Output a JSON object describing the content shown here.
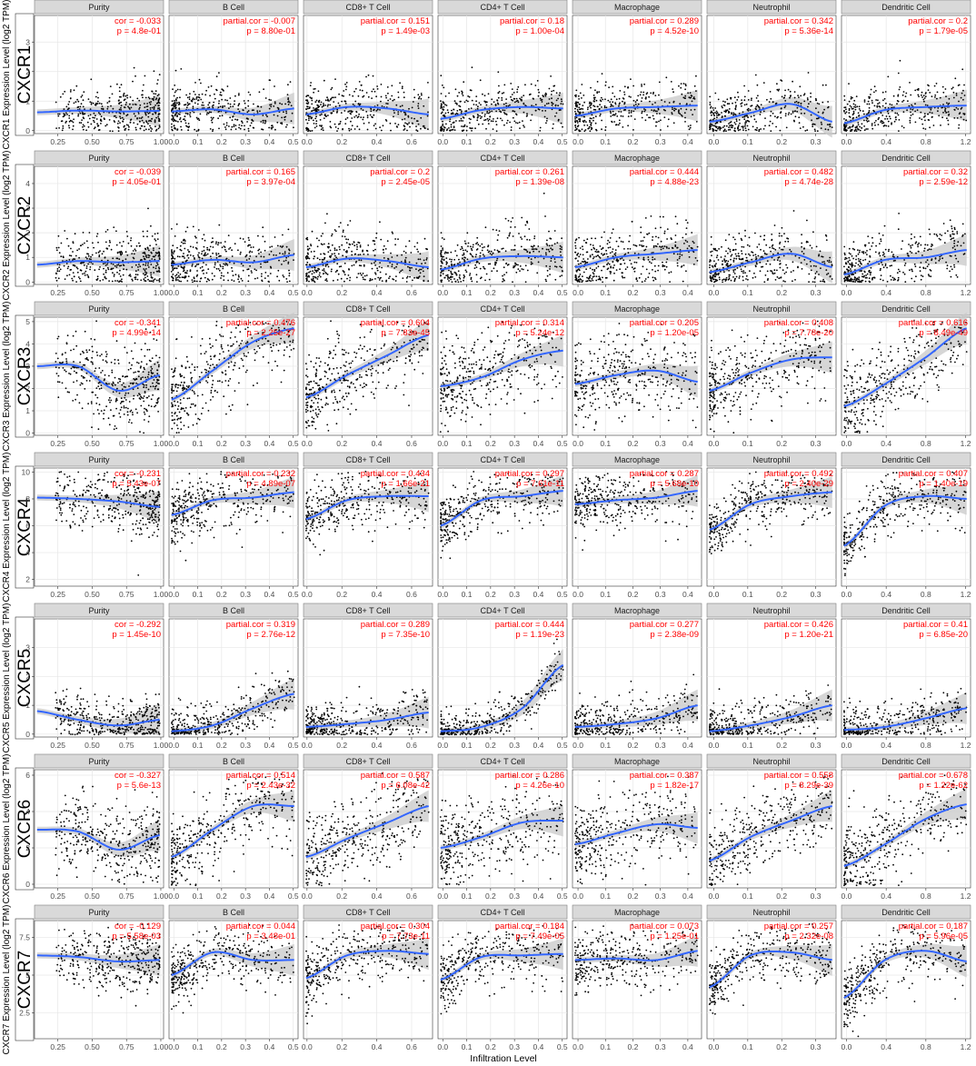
{
  "x_axis_label": "Infiltration Level",
  "colors": {
    "panel_bg": "#ffffff",
    "grid": "#e6e6e6",
    "strip_bg": "#d9d9d9",
    "strip_border": "#7f7f7f",
    "point": "#000000",
    "smooth_line": "#3366ff",
    "ci_band": "#c8c8c8",
    "stat_text": "#ff0000"
  },
  "chart_data": {
    "type": "scatter",
    "smoother": "loess with 95% confidence band",
    "columns": [
      {
        "name": "Purity",
        "stat_label": "cor",
        "xlim": [
          0.08,
          1.02
        ],
        "xticks": [
          0.25,
          0.5,
          0.75,
          1.0
        ],
        "xtick_labels": [
          "0.25",
          "0.50",
          "0.75",
          "1.00"
        ]
      },
      {
        "name": "B Cell",
        "stat_label": "partial.cor",
        "xlim": [
          -0.02,
          0.52
        ],
        "xticks": [
          0,
          0.1,
          0.2,
          0.3,
          0.4,
          0.5
        ],
        "xtick_labels": [
          "0.0",
          "0.1",
          "0.2",
          "0.3",
          "0.4",
          "0.5"
        ]
      },
      {
        "name": "CD8+ T Cell",
        "stat_label": "partial.cor",
        "xlim": [
          -0.02,
          0.72
        ],
        "xticks": [
          0,
          0.2,
          0.4,
          0.6
        ],
        "xtick_labels": [
          "0.0",
          "0.2",
          "0.4",
          "0.6"
        ]
      },
      {
        "name": "CD4+ T Cell",
        "stat_label": "partial.cor",
        "xlim": [
          -0.02,
          0.52
        ],
        "xticks": [
          0,
          0.1,
          0.2,
          0.3,
          0.4,
          0.5
        ],
        "xtick_labels": [
          "0.0",
          "0.1",
          "0.2",
          "0.3",
          "0.4",
          "0.5"
        ]
      },
      {
        "name": "Macrophage",
        "stat_label": "partial.cor",
        "xlim": [
          -0.02,
          0.45
        ],
        "xticks": [
          0,
          0.1,
          0.2,
          0.3,
          0.4
        ],
        "xtick_labels": [
          "0.0",
          "0.1",
          "0.2",
          "0.3",
          "0.4"
        ]
      },
      {
        "name": "Neutrophil",
        "stat_label": "partial.cor",
        "xlim": [
          -0.02,
          0.36
        ],
        "xticks": [
          0,
          0.1,
          0.2,
          0.3
        ],
        "xtick_labels": [
          "0.0",
          "0.1",
          "0.2",
          "0.3"
        ]
      },
      {
        "name": "Dendritic Cell",
        "stat_label": "partial.cor",
        "xlim": [
          -0.05,
          1.25
        ],
        "xticks": [
          0,
          0.4,
          0.8,
          1.2
        ],
        "xtick_labels": [
          "0.0",
          "0.4",
          "0.8",
          "1.2"
        ]
      }
    ],
    "rows": [
      {
        "gene": "CXCR1",
        "ylabel": "CXCR1 Expression Level (log2 TPM)",
        "ylim": [
          -0.1,
          3.9
        ],
        "yticks": [
          0,
          1,
          2,
          3
        ],
        "mean": 0.65,
        "sd": 0.45,
        "panels": [
          {
            "cor": "-0.033",
            "p": "4.8e-01",
            "curve": [
              0.62,
              0.68,
              0.65,
              0.67
            ]
          },
          {
            "cor": "-0.007",
            "p": "8.80e-01",
            "curve": [
              0.65,
              0.72,
              0.55,
              0.75
            ]
          },
          {
            "cor": "0.151",
            "p": "1.49e-03",
            "curve": [
              0.55,
              0.8,
              0.75,
              0.55
            ]
          },
          {
            "cor": "0.18",
            "p": "1.00e-04",
            "curve": [
              0.4,
              0.7,
              0.8,
              0.75
            ]
          },
          {
            "cor": "0.289",
            "p": "4.52e-10",
            "curve": [
              0.5,
              0.75,
              0.8,
              0.85
            ]
          },
          {
            "cor": "0.342",
            "p": "5.36e-14",
            "curve": [
              0.3,
              0.6,
              0.9,
              0.3
            ]
          },
          {
            "cor": "0.2",
            "p": "1.79e-05",
            "curve": [
              0.25,
              0.7,
              0.8,
              0.85
            ]
          }
        ]
      },
      {
        "gene": "CXCR2",
        "ylabel": "CXCR2 Expression Level (log2 TPM)",
        "ylim": [
          -0.1,
          4.7
        ],
        "yticks": [
          0,
          1,
          2,
          3,
          4
        ],
        "mean": 0.85,
        "sd": 0.6,
        "panels": [
          {
            "cor": "-0.039",
            "p": "4.05e-01",
            "curve": [
              0.7,
              0.85,
              0.8,
              0.85
            ]
          },
          {
            "cor": "0.165",
            "p": "3.97e-04",
            "curve": [
              0.7,
              0.9,
              0.8,
              1.1
            ]
          },
          {
            "cor": "0.2",
            "p": "2.45e-05",
            "curve": [
              0.6,
              0.95,
              0.85,
              0.6
            ]
          },
          {
            "cor": "0.261",
            "p": "1.39e-08",
            "curve": [
              0.5,
              0.95,
              1.05,
              1.0
            ]
          },
          {
            "cor": "0.444",
            "p": "4.88e-23",
            "curve": [
              0.6,
              1.0,
              1.15,
              1.3
            ]
          },
          {
            "cor": "0.482",
            "p": "4.74e-28",
            "curve": [
              0.4,
              0.8,
              1.15,
              0.6
            ]
          },
          {
            "cor": "0.32",
            "p": "2.59e-12",
            "curve": [
              0.3,
              0.9,
              1.0,
              1.3
            ]
          }
        ]
      },
      {
        "gene": "CXCR3",
        "ylabel": "CXCR3 Expression Level (log2 TPM)",
        "ylim": [
          -0.1,
          5.2
        ],
        "yticks": [
          0,
          1,
          2,
          3,
          4,
          5
        ],
        "mean": 2.6,
        "sd": 0.9,
        "panels": [
          {
            "cor": "-0.341",
            "p": "4.99e-14",
            "curve": [
              3.0,
              3.0,
              1.9,
              2.6
            ]
          },
          {
            "cor": "0.476",
            "p": "2.25e-27",
            "curve": [
              1.5,
              2.8,
              4.1,
              4.7
            ]
          },
          {
            "cor": "0.604",
            "p": "7.83e-45",
            "curve": [
              1.6,
              2.6,
              3.5,
              4.4
            ]
          },
          {
            "cor": "0.314",
            "p": "5.24e-12",
            "curve": [
              2.1,
              2.5,
              3.3,
              3.7
            ]
          },
          {
            "cor": "0.205",
            "p": "1.20e-05",
            "curve": [
              2.2,
              2.6,
              2.8,
              2.3
            ]
          },
          {
            "cor": "0.408",
            "p": "7.78e-20",
            "curve": [
              1.9,
              2.7,
              3.3,
              3.4
            ]
          },
          {
            "cor": "0.616",
            "p": "8.49e-49",
            "curve": [
              1.2,
              2.2,
              3.4,
              4.7
            ]
          }
        ]
      },
      {
        "gene": "CXCR4",
        "ylabel": "CXCR4 Expression Level (log2 TPM)",
        "ylim": [
          1.5,
          10.3
        ],
        "yticks": [
          2,
          4,
          6,
          8,
          10
        ],
        "mean": 7.6,
        "sd": 1.1,
        "panels": [
          {
            "cor": "-0.231",
            "p": "5.43e-07",
            "curve": [
              8.1,
              8.0,
              7.8,
              7.4
            ]
          },
          {
            "cor": "0.232",
            "p": "4.89e-07",
            "curve": [
              6.8,
              7.9,
              8.1,
              8.5
            ]
          },
          {
            "cor": "0.434",
            "p": "1.66e-21",
            "curve": [
              6.5,
              7.9,
              8.2,
              8.2
            ]
          },
          {
            "cor": "0.297",
            "p": "7.61e-11",
            "curve": [
              6.0,
              7.9,
              8.2,
              8.6
            ]
          },
          {
            "cor": "0.287",
            "p": "5.68e-10",
            "curve": [
              7.6,
              7.9,
              8.1,
              8.6
            ]
          },
          {
            "cor": "0.492",
            "p": "2.40e-29",
            "curve": [
              5.7,
              7.6,
              8.2,
              8.5
            ]
          },
          {
            "cor": "0.407",
            "p": "1.40e-19",
            "curve": [
              4.5,
              7.5,
              8.2,
              8.0
            ]
          }
        ]
      },
      {
        "gene": "CXCR5",
        "ylabel": "CXCR5 Expression Level (log2 TPM)",
        "ylim": [
          -0.1,
          4.0
        ],
        "yticks": [
          0,
          1,
          2,
          3
        ],
        "mean": 0.35,
        "sd": 0.4,
        "panels": [
          {
            "cor": "-0.292",
            "p": "1.45e-10",
            "curve": [
              0.8,
              0.5,
              0.3,
              0.5
            ]
          },
          {
            "cor": "0.319",
            "p": "2.76e-12",
            "curve": [
              0.1,
              0.3,
              0.9,
              1.4
            ]
          },
          {
            "cor": "0.289",
            "p": "7.35e-10",
            "curve": [
              0.25,
              0.35,
              0.5,
              0.75
            ]
          },
          {
            "cor": "0.444",
            "p": "1.19e-23",
            "curve": [
              0.1,
              0.25,
              0.9,
              2.4
            ]
          },
          {
            "cor": "0.277",
            "p": "2.38e-09",
            "curve": [
              0.25,
              0.35,
              0.55,
              1.0
            ]
          },
          {
            "cor": "0.426",
            "p": "1.20e-21",
            "curve": [
              0.1,
              0.3,
              0.6,
              1.0
            ]
          },
          {
            "cor": "0.41",
            "p": "6.85e-20",
            "curve": [
              0.15,
              0.25,
              0.55,
              0.9
            ]
          }
        ]
      },
      {
        "gene": "CXCR6",
        "ylabel": "CXCR6 Expression Level (log2 TPM)",
        "ylim": [
          -0.2,
          6.3
        ],
        "yticks": [
          0,
          2,
          4,
          6
        ],
        "mean": 2.6,
        "sd": 1.1,
        "panels": [
          {
            "cor": "-0.327",
            "p": "5.6e-13",
            "curve": [
              3.0,
              2.9,
              1.9,
              2.7
            ]
          },
          {
            "cor": "0.514",
            "p": "2.43e-32",
            "curve": [
              1.5,
              3.0,
              4.3,
              4.3
            ]
          },
          {
            "cor": "0.587",
            "p": "6.08e-42",
            "curve": [
              1.5,
              2.5,
              3.4,
              4.3
            ]
          },
          {
            "cor": "0.286",
            "p": "4.26e-10",
            "curve": [
              2.0,
              2.6,
              3.4,
              3.5
            ]
          },
          {
            "cor": "0.387",
            "p": "1.82e-17",
            "curve": [
              2.2,
              2.8,
              3.3,
              3.1
            ]
          },
          {
            "cor": "0.558",
            "p": "8.29e-39",
            "curve": [
              1.3,
              2.6,
              3.5,
              4.3
            ]
          },
          {
            "cor": "0.678",
            "p": "1.22e-62",
            "curve": [
              1.0,
              2.2,
              3.6,
              4.4
            ]
          }
        ]
      },
      {
        "gene": "CXCR7",
        "ylabel": "CXCR7 Expression Level (log2 TPM)",
        "ylim": [
          0.8,
          8.6
        ],
        "yticks": [
          2.5,
          5.0,
          7.5
        ],
        "mean": 5.9,
        "sd": 1.0,
        "panels": [
          {
            "cor": "-0.129",
            "p": "5.58e-03",
            "curve": [
              6.3,
              6.2,
              5.9,
              6.0
            ]
          },
          {
            "cor": "0.044",
            "p": "3.48e-01",
            "curve": [
              5.0,
              6.5,
              6.0,
              6.0
            ]
          },
          {
            "cor": "0.304",
            "p": "7.73e-11",
            "curve": [
              4.8,
              6.3,
              6.6,
              6.4
            ]
          },
          {
            "cor": "0.184",
            "p": "7.49e-05",
            "curve": [
              4.7,
              6.2,
              6.3,
              6.4
            ]
          },
          {
            "cor": "0.073",
            "p": "1.25e-01",
            "curve": [
              6.0,
              6.1,
              6.0,
              6.6
            ]
          },
          {
            "cor": "0.257",
            "p": "2.32e-08",
            "curve": [
              4.2,
              6.3,
              6.5,
              6.0
            ]
          },
          {
            "cor": "0.187",
            "p": "5.96e-05",
            "curve": [
              3.5,
              6.0,
              6.6,
              5.9
            ]
          }
        ]
      }
    ]
  }
}
